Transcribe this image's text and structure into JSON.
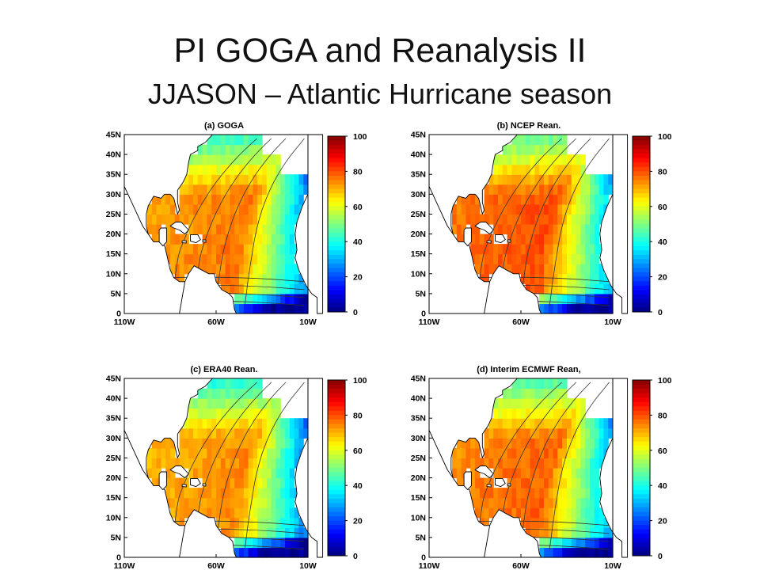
{
  "title": "PI GOGA and Reanalysis II",
  "subtitle": "JJASON – Atlantic Hurricane season",
  "map_axes": {
    "lat_labels": [
      "45N",
      "40N",
      "35N",
      "30N",
      "25N",
      "20N",
      "15N",
      "10N",
      "5N",
      "0"
    ],
    "lon_labels": [
      "110W",
      "60W",
      "10W"
    ],
    "lat_range": [
      0,
      45
    ],
    "lon_range": [
      -110,
      -10
    ]
  },
  "colorbar": {
    "ticks": [
      "100",
      "80",
      "60",
      "40",
      "20",
      "0"
    ],
    "range": [
      0,
      100
    ]
  },
  "panels": [
    {
      "title": "(a) GOGA"
    },
    {
      "title": "(b) NCEP Rean."
    },
    {
      "title": "(c) ERA40 Rean."
    },
    {
      "title": "(d) Interim ECMWF Rean,"
    }
  ]
}
